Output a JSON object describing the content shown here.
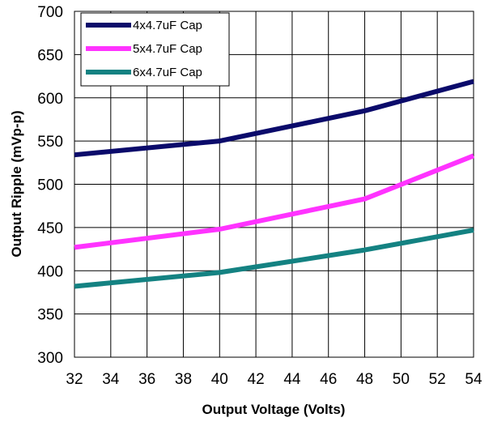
{
  "chart_data": {
    "type": "line",
    "title": "",
    "xlabel": "Output Voltage (Volts)",
    "ylabel": "Output Ripple (mVp-p)",
    "xlim": [
      32,
      54
    ],
    "ylim": [
      300,
      700
    ],
    "xticks": [
      32,
      34,
      36,
      38,
      40,
      42,
      44,
      46,
      48,
      50,
      52,
      54
    ],
    "yticks": [
      300,
      350,
      400,
      450,
      500,
      550,
      600,
      650,
      700
    ],
    "grid": true,
    "legend_position": "top-left",
    "series": [
      {
        "name": "4x4.7uF Cap",
        "color": "#0b0b6b",
        "x": [
          32,
          40,
          48,
          54
        ],
        "y": [
          534,
          550,
          585,
          619
        ]
      },
      {
        "name": "5x4.7uF Cap",
        "color": "#ff33ff",
        "x": [
          32,
          40,
          48,
          54
        ],
        "y": [
          427,
          448,
          483,
          533
        ]
      },
      {
        "name": "6x4.7uF Cap",
        "color": "#148282",
        "x": [
          32,
          40,
          48,
          54
        ],
        "y": [
          382,
          398,
          424,
          447
        ]
      }
    ]
  }
}
